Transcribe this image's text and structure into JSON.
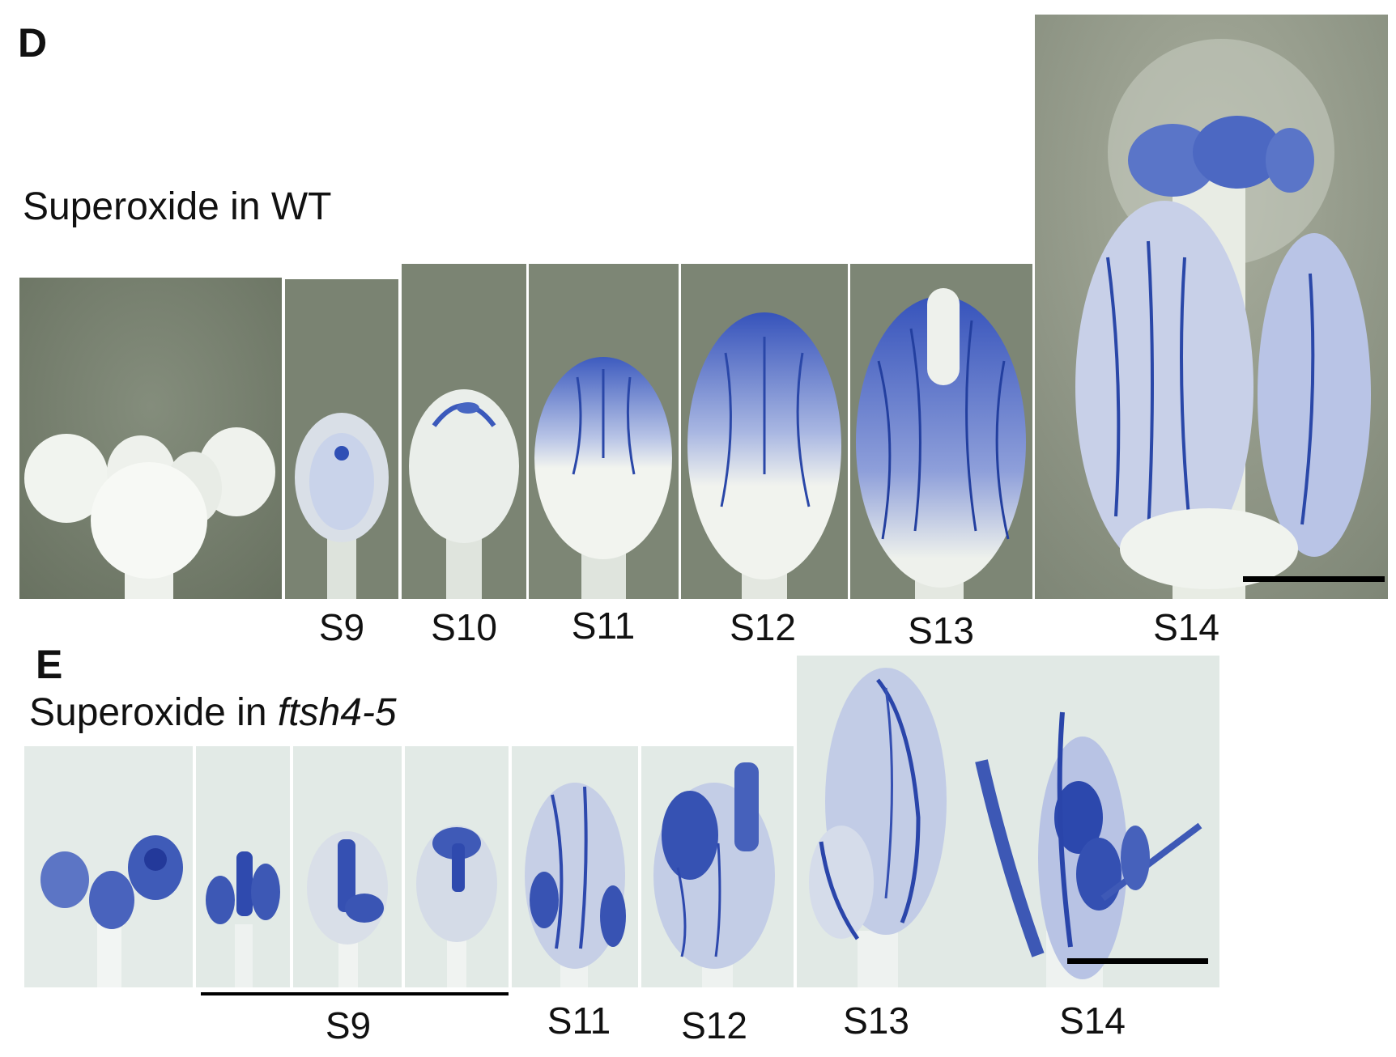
{
  "panel_d": {
    "letter": "D",
    "heading": "Superoxide in WT",
    "stages": [
      "S9",
      "S10",
      "S11",
      "S12",
      "S13",
      "S14"
    ]
  },
  "panel_e": {
    "letter": "E",
    "heading_prefix": "Superoxide in ",
    "heading_genotype": "ftsh4-5",
    "stages": [
      "S9",
      "S11",
      "S12",
      "S13",
      "S14"
    ]
  },
  "colors": {
    "wt_background": "#77806f",
    "mutant_background": "#dfe7e4",
    "stain_blue": "#2f4fb5",
    "tissue_white": "#f3f6f1"
  }
}
